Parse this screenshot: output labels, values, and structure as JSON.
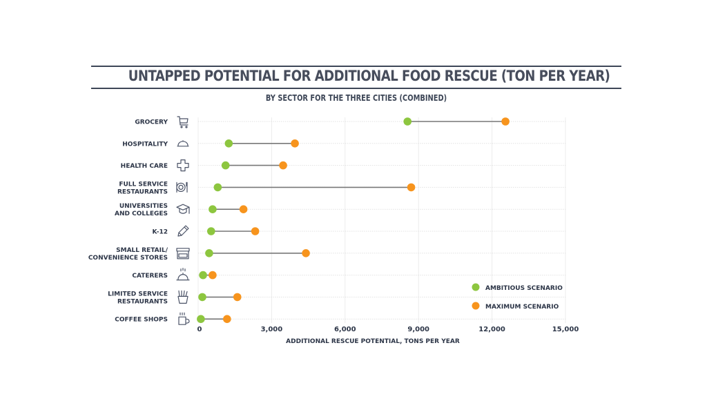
{
  "header": {
    "title": "UNTAPPED POTENTIAL FOR ADDITIONAL FOOD RESCUE (TON PER YEAR)",
    "subtitle": "BY SECTOR FOR THE THREE CITIES (COMBINED)"
  },
  "colors": {
    "ambitious": "#8dc63f",
    "maximum": "#f7941d",
    "connector": "#777777",
    "rule": "#3d4657"
  },
  "chart_data": {
    "type": "dumbbell",
    "title": "UNTAPPED POTENTIAL FOR ADDITIONAL FOOD RESCUE (TON PER YEAR)",
    "subtitle": "BY SECTOR FOR THE THREE CITIES (COMBINED)",
    "xlabel": "ADDITIONAL RESCUE POTENTIAL, TONS PER YEAR",
    "ylabel": "",
    "xlim": [
      0,
      15000
    ],
    "xticks": [
      0,
      3000,
      6000,
      9000,
      12000,
      15000
    ],
    "xtick_labels": [
      "0",
      "3,000",
      "6,000",
      "9,000",
      "12,000",
      "15,000"
    ],
    "grid": true,
    "legend_position": "bottom-right",
    "categories": [
      {
        "lines": [
          "GROCERY"
        ],
        "icon": "shopping-cart-icon"
      },
      {
        "lines": [
          "HOSPITALITY"
        ],
        "icon": "cloche-icon"
      },
      {
        "lines": [
          "HEALTH CARE"
        ],
        "icon": "medical-cross-icon"
      },
      {
        "lines": [
          "FULL SERVICE",
          "RESTAURANTS"
        ],
        "icon": "plate-cutlery-icon"
      },
      {
        "lines": [
          "UNIVERSITIES",
          "AND COLLEGES"
        ],
        "icon": "graduation-cap-icon"
      },
      {
        "lines": [
          "K-12"
        ],
        "icon": "pencil-icon"
      },
      {
        "lines": [
          "SMALL RETAIL/",
          "CONVENIENCE STORES"
        ],
        "icon": "storefront-icon"
      },
      {
        "lines": [
          "CATERERS"
        ],
        "icon": "service-bell-icon"
      },
      {
        "lines": [
          "LIMITED SERVICE",
          "RESTAURANTS"
        ],
        "icon": "fries-icon"
      },
      {
        "lines": [
          "COFFEE SHOPS"
        ],
        "icon": "coffee-cup-icon"
      }
    ],
    "series": [
      {
        "name": "AMBITIOUS SCENARIO",
        "color": "#8dc63f",
        "values": [
          8550,
          1250,
          1120,
          800,
          590,
          530,
          450,
          200,
          170,
          110
        ]
      },
      {
        "name": "MAXIMUM SCENARIO",
        "color": "#f7941d",
        "values": [
          12550,
          3950,
          3470,
          8700,
          1850,
          2330,
          4400,
          590,
          1600,
          1180
        ]
      }
    ]
  }
}
